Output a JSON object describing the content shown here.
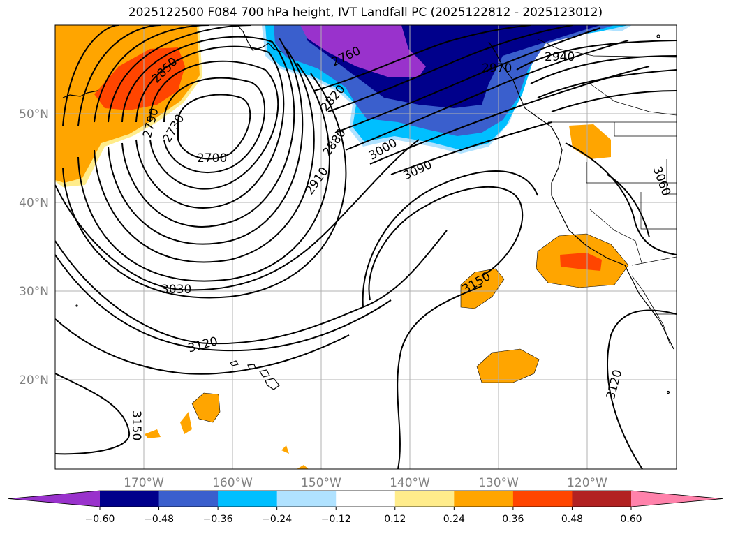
{
  "title": "2025122500 F084 700 hPa height, IVT Landfall PC (2025122812 - 2025123012)",
  "lat_labels": [
    "50°N",
    "40°N",
    "30°N",
    "20°N"
  ],
  "lon_labels": [
    "170°W",
    "160°W",
    "150°W",
    "140°W",
    "130°W",
    "120°W"
  ],
  "contour_labels": [
    "2850",
    "2790",
    "2730",
    "2700",
    "2760",
    "2820",
    "2880",
    "2910",
    "2970",
    "2940",
    "3000",
    "3090",
    "3060",
    "3030",
    "3120",
    "3150",
    "3150",
    "3120"
  ],
  "colorbar": {
    "colors": [
      "#9932cc",
      "#00008b",
      "#3a5fcd",
      "#00bfff",
      "#b0e2ff",
      "#ffffff",
      "#ffec8b",
      "#ffa500",
      "#ff4500",
      "#b22222",
      "#ff82ab"
    ],
    "tick_labels": [
      "−0.60",
      "−0.48",
      "−0.36",
      "−0.24",
      "−0.12",
      "0.12",
      "0.24",
      "0.36",
      "0.48",
      "0.60"
    ]
  }
}
